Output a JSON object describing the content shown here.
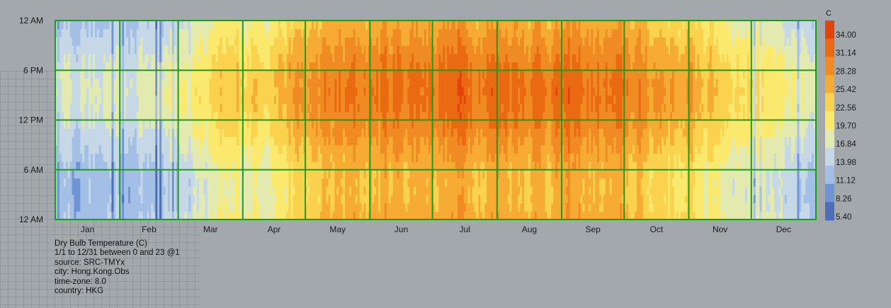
{
  "colors": {
    "background": "#a3a8ad",
    "grid_line": "#1f9a1f",
    "scale": [
      "#4a6fb8",
      "#6f94d6",
      "#a4bfe6",
      "#c6d8e6",
      "#e3eaaf",
      "#fbe96e",
      "#fbd24e",
      "#f6ab34",
      "#f08a23",
      "#ea6a12",
      "#e34309"
    ]
  },
  "chart_data": {
    "type": "heatmap",
    "x_labels": [
      "Jan",
      "Feb",
      "Mar",
      "Apr",
      "May",
      "Jun",
      "Jul",
      "Aug",
      "Sep",
      "Oct",
      "Nov",
      "Dec"
    ],
    "y_labels": [
      "12 AM",
      "6 AM",
      "12 PM",
      "6 PM",
      "12 AM"
    ],
    "legend": {
      "unit": "C",
      "values": [
        34.0,
        31.14,
        28.28,
        25.42,
        22.56,
        19.7,
        16.84,
        13.98,
        11.12,
        8.26,
        5.4
      ],
      "range": [
        5.4,
        36.8
      ]
    },
    "monthly_mean_c": [
      15.5,
      15.5,
      19.5,
      23.5,
      27.5,
      29.0,
      30.0,
      29.5,
      28.5,
      26.5,
      22.5,
      18.0
    ],
    "diurnal_amplitude_c": [
      2.5,
      2.5,
      2.5,
      2.8,
      2.8,
      2.8,
      3.0,
      3.0,
      2.8,
      2.8,
      2.6,
      2.5
    ],
    "peak_hour": 15
  },
  "info": [
    "Dry Bulb Temperature (C)",
    "1/1 to 12/31 between 0 and 23 @1",
    "source: SRC-TMYx",
    "city: Hong.Kong.Obs",
    "time-zone: 8.0",
    "country: HKG"
  ]
}
